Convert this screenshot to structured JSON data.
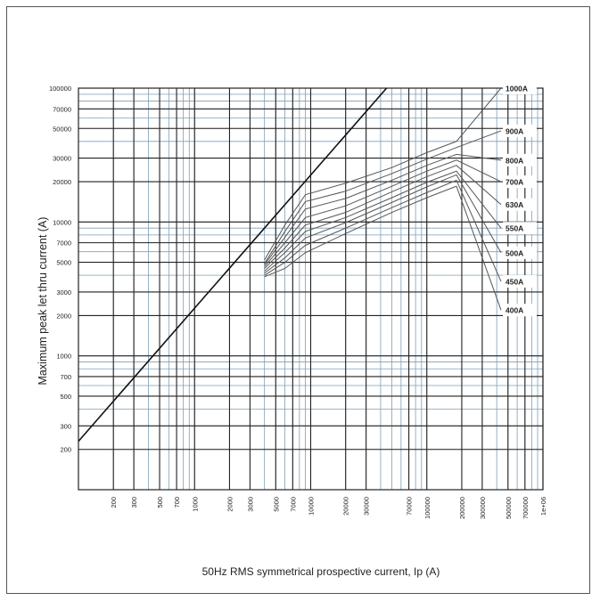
{
  "chart_data": {
    "type": "line",
    "xlabel": "50Hz RMS symmetrical prospective current, Ip (A)",
    "ylabel": "Maximum peak let thru current (A)",
    "x_scale": "log",
    "y_scale": "log",
    "xlim": [
      100,
      1000000
    ],
    "ylim": [
      100,
      100000
    ],
    "x_ticks": [
      200,
      300,
      500,
      700,
      1000,
      2000,
      3000,
      5000,
      7000,
      10000,
      20000,
      30000,
      70000,
      100000,
      200000,
      300000,
      500000,
      700000,
      1000000
    ],
    "x_tick_labels": [
      "200",
      "300",
      "500",
      "700",
      "1000",
      "2000",
      "3000",
      "5000",
      "7000",
      "10000",
      "20000",
      "30000",
      "70000",
      "100000",
      "200000",
      "300000",
      "500000",
      "700000",
      "1e+06"
    ],
    "y_ticks": [
      200,
      300,
      500,
      700,
      1000,
      2000,
      3000,
      5000,
      7000,
      10000,
      20000,
      30000,
      50000,
      70000,
      100000
    ],
    "y_tick_labels": [
      "200",
      "300",
      "500",
      "700",
      "1000",
      "2000",
      "3000",
      "5000",
      "7000",
      "10000",
      "20000",
      "30000",
      "50000",
      "70000",
      "100000"
    ],
    "grid": true,
    "reference_line": {
      "x": [
        100,
        45000
      ],
      "y": [
        230,
        100000
      ]
    },
    "series": [
      {
        "name": "1000A",
        "x": [
          4000,
          6000,
          9000,
          20000,
          50000,
          100000,
          180000
        ],
        "y": [
          5200,
          9500,
          16000,
          19500,
          25500,
          33000,
          40000
        ],
        "label_y": 100000
      },
      {
        "name": "900A",
        "x": [
          4000,
          6000,
          9000,
          20000,
          50000,
          100000,
          180000
        ],
        "y": [
          4900,
          8500,
          14200,
          17000,
          23000,
          29500,
          36000
        ],
        "label_y": 48000
      },
      {
        "name": "800A",
        "x": [
          4000,
          6000,
          9000,
          20000,
          50000,
          100000,
          180000
        ],
        "y": [
          4800,
          7700,
          12500,
          15000,
          20500,
          26500,
          32000
        ],
        "label_y": 29000
      },
      {
        "name": "700A",
        "x": [
          4000,
          6000,
          9000,
          20000,
          50000,
          100000,
          180000
        ],
        "y": [
          4650,
          7000,
          10800,
          13200,
          18500,
          24000,
          29000
        ],
        "label_y": 20000
      },
      {
        "name": "630A",
        "x": [
          4000,
          6000,
          9000,
          20000,
          50000,
          100000,
          180000
        ],
        "y": [
          4500,
          6400,
          9500,
          11800,
          16800,
          21800,
          26500
        ],
        "label_y": 13500
      },
      {
        "name": "550A",
        "x": [
          4000,
          6000,
          9000,
          20000,
          50000,
          100000,
          180000
        ],
        "y": [
          4300,
          5900,
          8500,
          10800,
          15200,
          19800,
          24000
        ],
        "label_y": 9000
      },
      {
        "name": "500A",
        "x": [
          4000,
          6000,
          9000,
          20000,
          50000,
          100000,
          180000
        ],
        "y": [
          4150,
          5400,
          7600,
          9900,
          14000,
          18300,
          22500
        ],
        "label_y": 5900
      },
      {
        "name": "450A",
        "x": [
          4000,
          6000,
          9000,
          20000,
          50000,
          100000,
          180000
        ],
        "y": [
          4000,
          5000,
          6700,
          9000,
          12800,
          16600,
          20500
        ],
        "label_y": 3600
      },
      {
        "name": "400A",
        "x": [
          4000,
          6000,
          9000,
          20000,
          50000,
          100000,
          180000
        ],
        "y": [
          3900,
          4500,
          5900,
          8200,
          11800,
          15200,
          18500
        ],
        "label_y": 2200
      }
    ],
    "colors": {
      "grid_major": "#222222",
      "grid_minor": "#7f9fb3",
      "curve": "#555555",
      "reference": "#111111"
    }
  }
}
